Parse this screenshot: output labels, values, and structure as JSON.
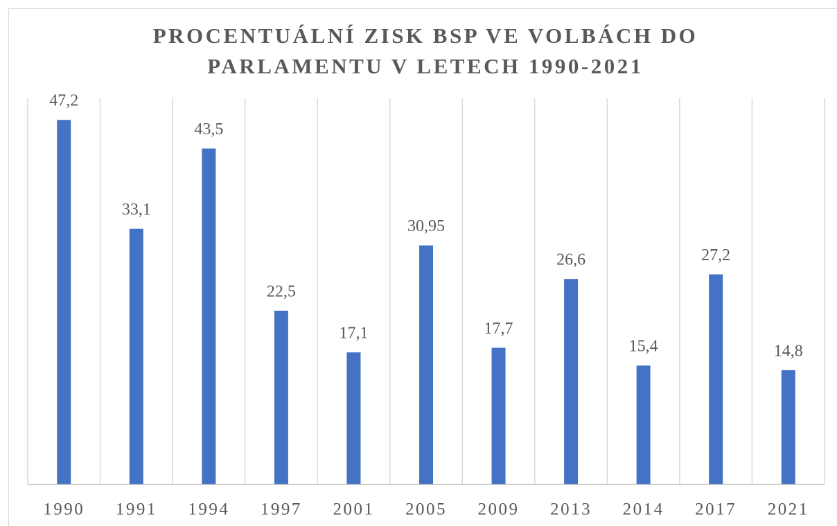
{
  "chart_data": {
    "type": "bar",
    "title": "PROCENTUÁLNÍ ZISK BSP VE VOLBÁCH DO PARLAMENTU V LETECH 1990-2021",
    "categories": [
      "1990",
      "1991",
      "1994",
      "1997",
      "2001",
      "2005",
      "2009",
      "2013",
      "2014",
      "2017",
      "2021"
    ],
    "values": [
      47.2,
      33.1,
      43.5,
      22.5,
      17.1,
      30.95,
      17.7,
      26.6,
      15.4,
      27.2,
      14.8
    ],
    "value_labels": [
      "47,2",
      "33,1",
      "43,5",
      "22,5",
      "17,1",
      "30,95",
      "17,7",
      "26,6",
      "15,4",
      "27,2",
      "14,8"
    ],
    "color": "#4472c4",
    "ylim": [
      0,
      50
    ],
    "grid": true
  }
}
